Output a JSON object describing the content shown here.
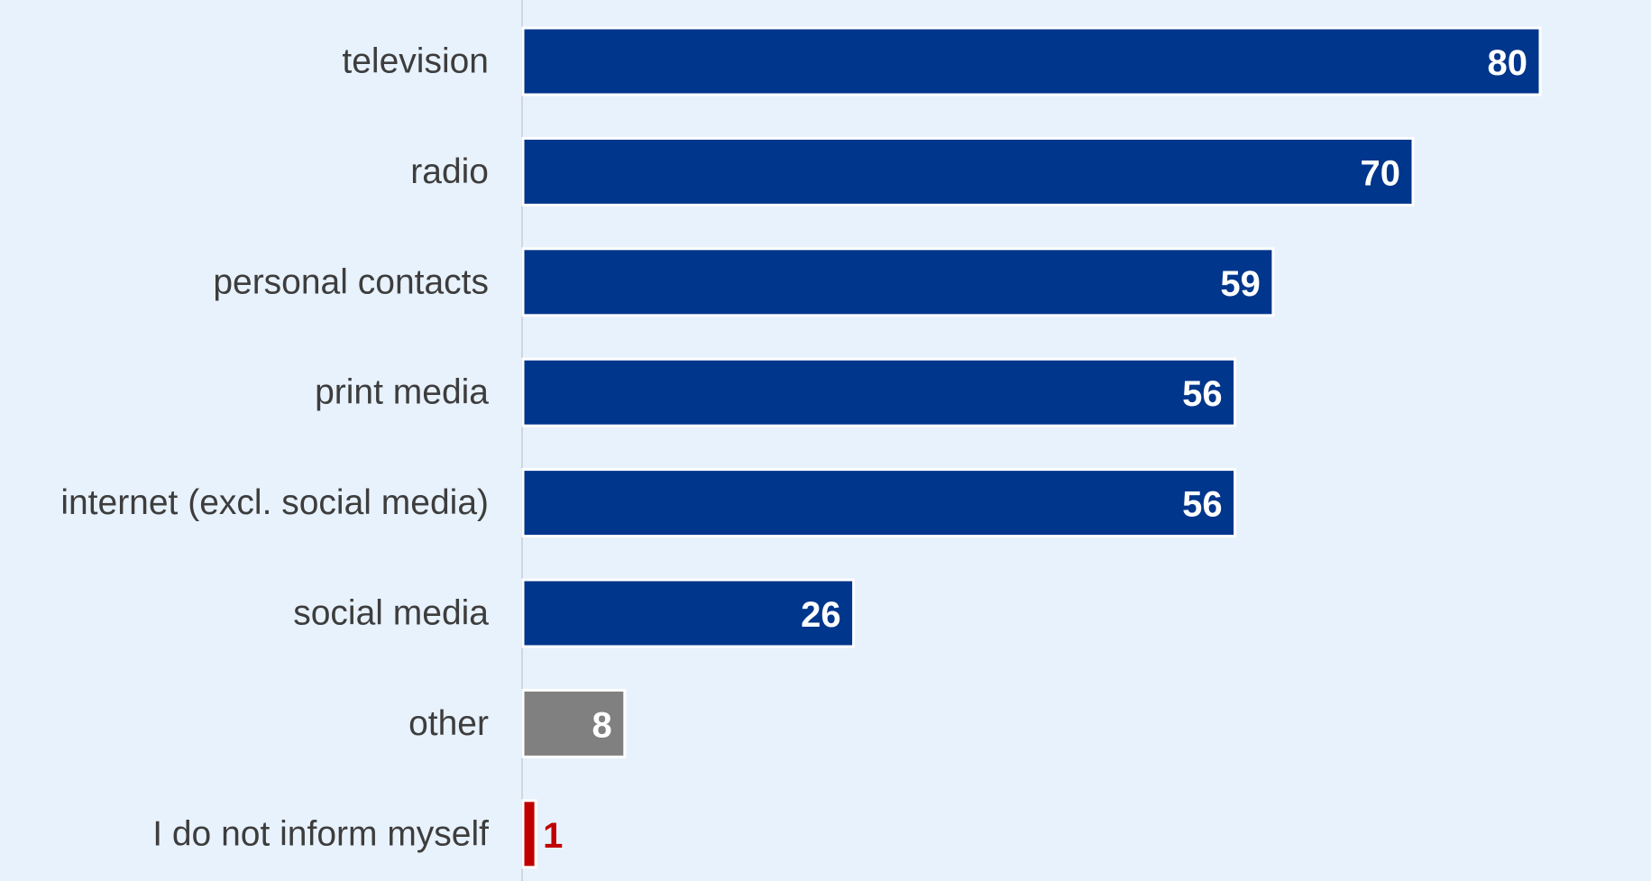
{
  "chart_data": {
    "type": "bar",
    "orientation": "horizontal",
    "categories": [
      "television",
      "radio",
      "personal contacts",
      "print media",
      "internet (excl. social media)",
      "social media",
      "other",
      "I do not inform myself"
    ],
    "values": [
      80,
      70,
      59,
      56,
      56,
      26,
      8,
      1
    ],
    "value_labels": [
      "80",
      "70",
      "59",
      "56",
      "56",
      "26",
      "8",
      "1"
    ],
    "bar_colors": [
      "#00368c",
      "#00368c",
      "#00368c",
      "#00368c",
      "#00368c",
      "#00368c",
      "#808080",
      "#c00000"
    ],
    "label_colors": [
      "#ffffff",
      "#ffffff",
      "#ffffff",
      "#ffffff",
      "#ffffff",
      "#ffffff",
      "#ffffff",
      "#c00000"
    ],
    "label_position": [
      "inside-end",
      "inside-end",
      "inside-end",
      "inside-end",
      "inside-end",
      "inside-end",
      "inside-end",
      "outside-end"
    ],
    "xlim": [
      0,
      80
    ],
    "grid": false,
    "legend": "none",
    "background": "#e8f2fc",
    "axis_color": "#d0d6de"
  }
}
